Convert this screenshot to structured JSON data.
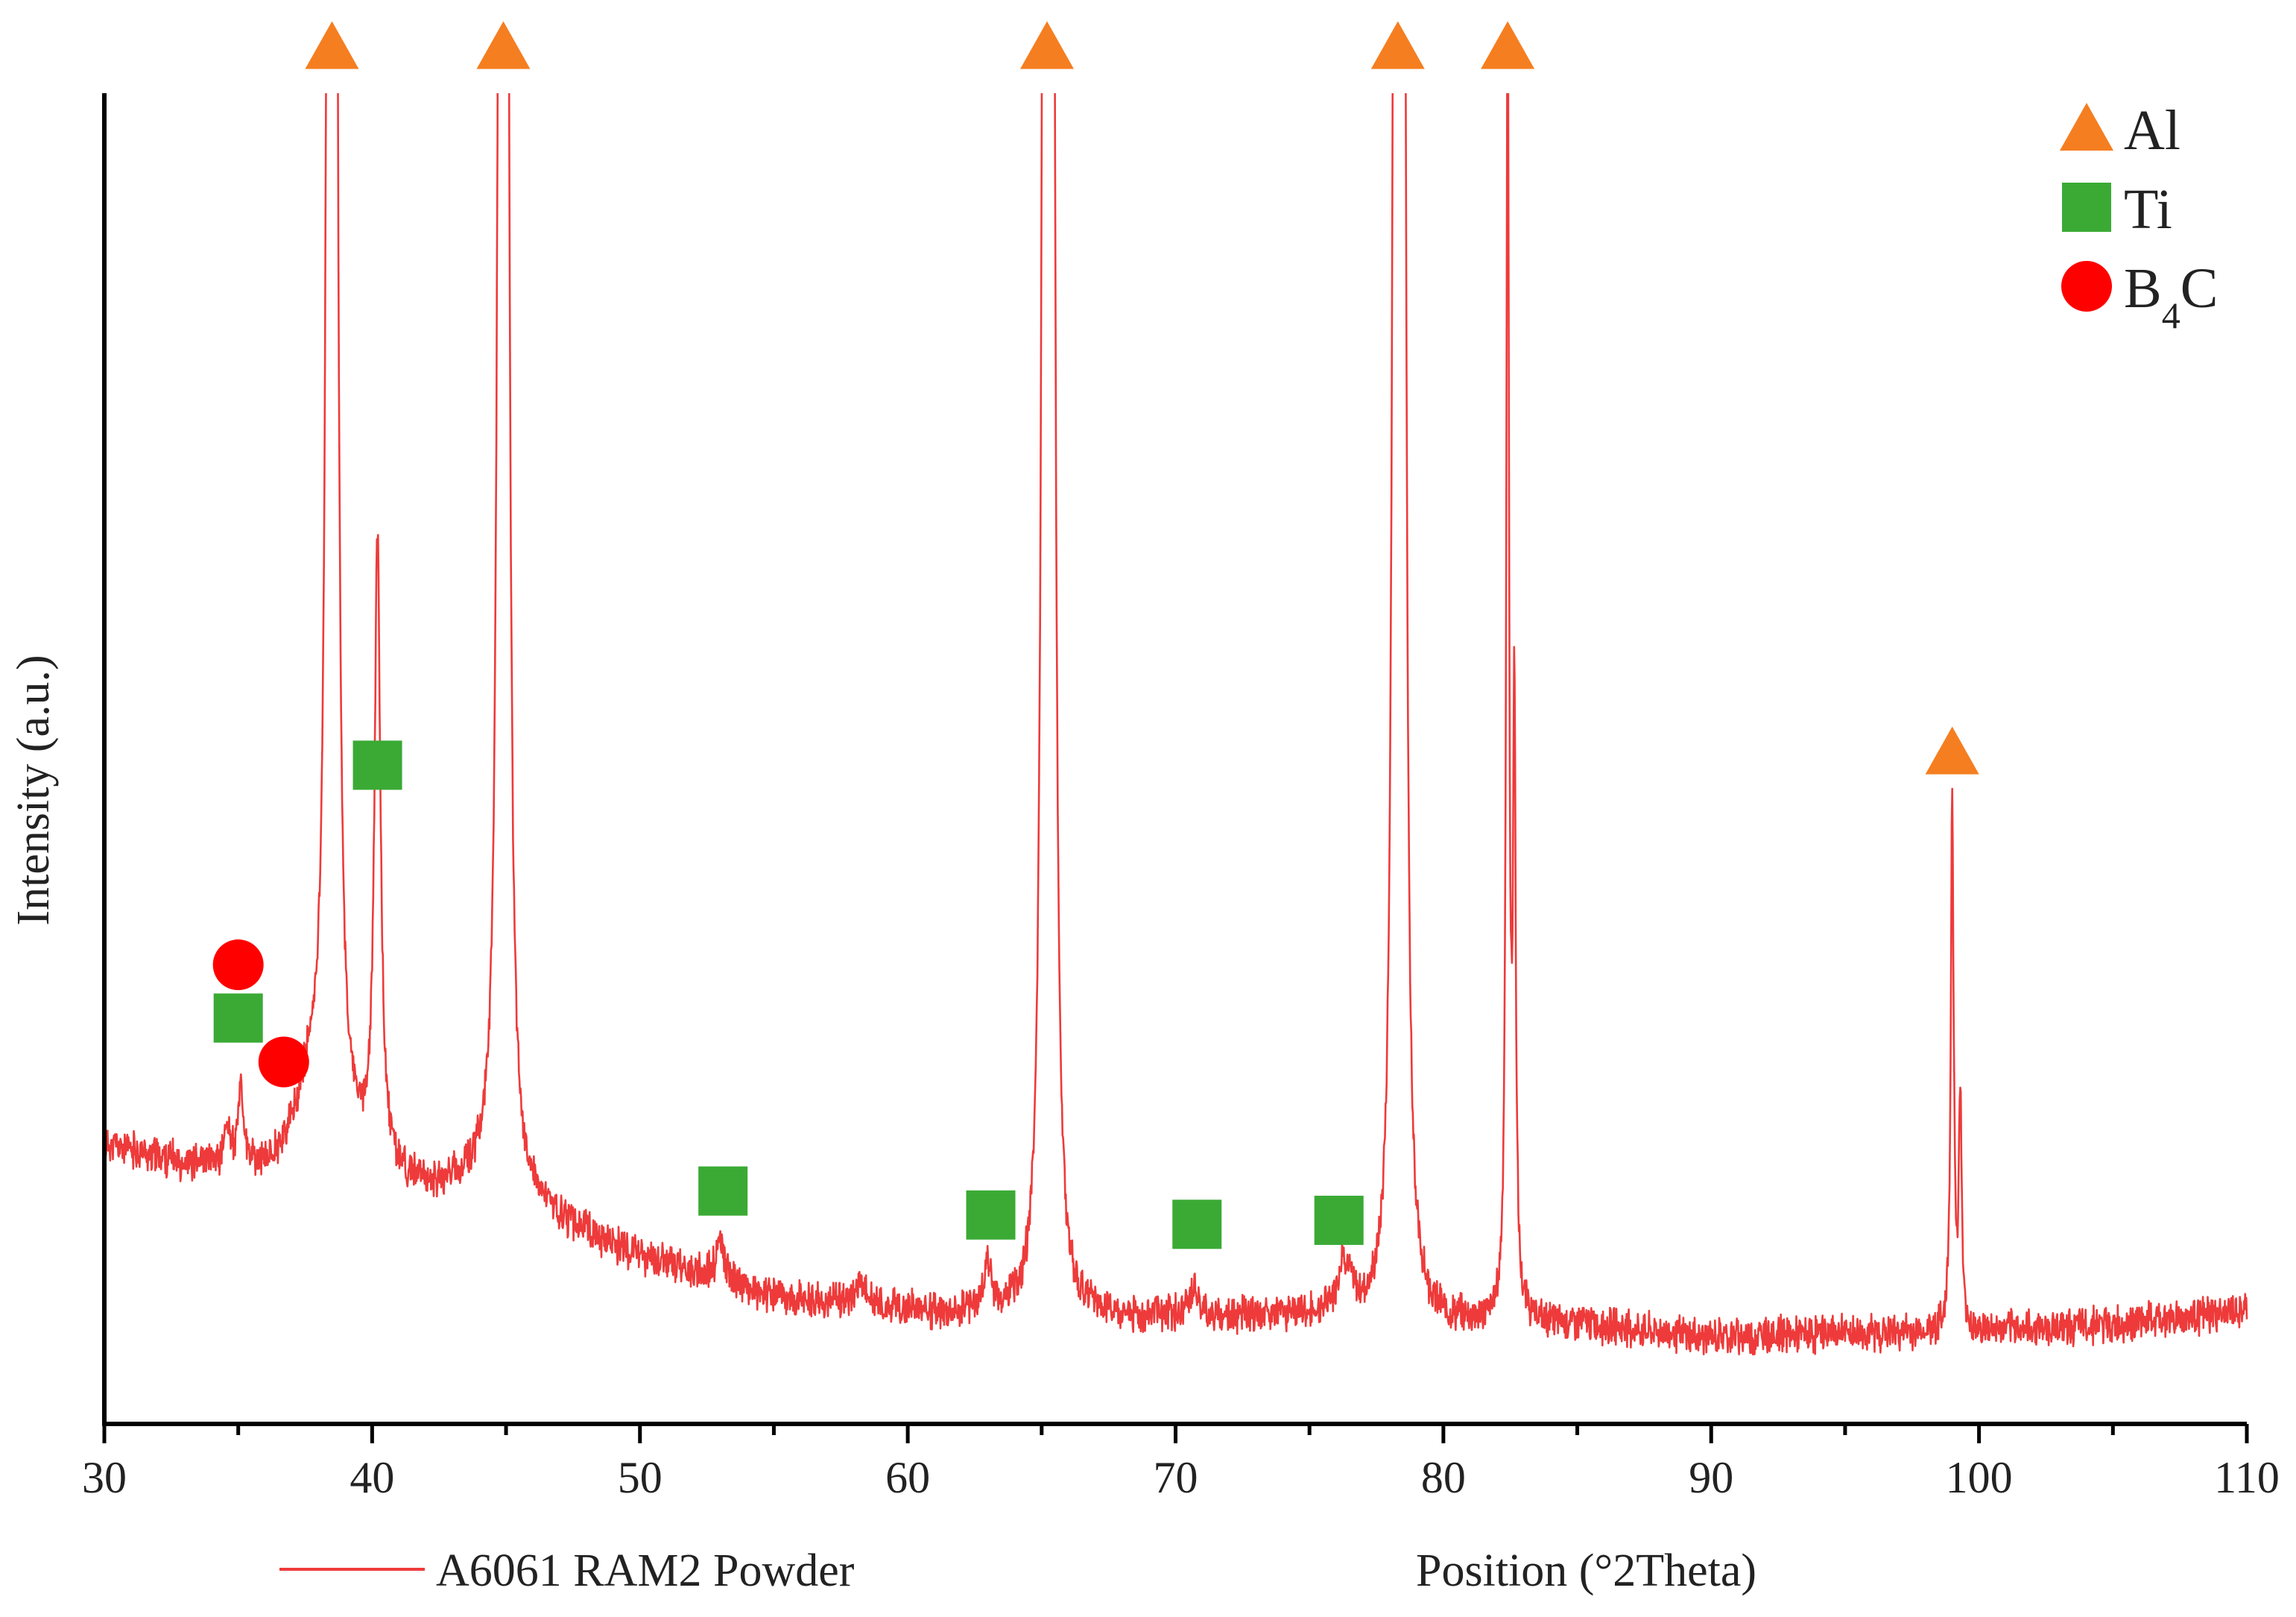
{
  "chart_data": {
    "type": "line",
    "title": "",
    "xlabel": "Position (°2Theta)",
    "ylabel": "Intensity (a.u.)",
    "xlim": [
      30,
      110
    ],
    "ylim": [
      0,
      1
    ],
    "x_ticks": [
      "30",
      "40",
      "50",
      "60",
      "70",
      "80",
      "90",
      "100",
      "110"
    ],
    "grid": false,
    "y_tick_labels": false,
    "series": [
      {
        "name": "A6061 RAM2 Powder",
        "color": "#ee3a3a",
        "baseline": [
          [
            30,
            0.21
          ],
          [
            33,
            0.195
          ],
          [
            36,
            0.19
          ],
          [
            38,
            0.22
          ],
          [
            40,
            0.19
          ],
          [
            42,
            0.175
          ],
          [
            44,
            0.18
          ],
          [
            46,
            0.16
          ],
          [
            50,
            0.125
          ],
          [
            55,
            0.095
          ],
          [
            60,
            0.085
          ],
          [
            65,
            0.08
          ],
          [
            70,
            0.08
          ],
          [
            75,
            0.08
          ],
          [
            80,
            0.075
          ],
          [
            85,
            0.075
          ],
          [
            90,
            0.065
          ],
          [
            95,
            0.068
          ],
          [
            100,
            0.07
          ],
          [
            105,
            0.075
          ],
          [
            110,
            0.085
          ]
        ],
        "peaks": [
          {
            "x": 34.6,
            "height": 0.03,
            "width": 0.15
          },
          {
            "x": 35.1,
            "height": 0.06,
            "width": 0.12
          },
          {
            "x": 37.6,
            "height": 0.03,
            "width": 0.5
          },
          {
            "x": 38.4,
            "height": 1.5,
            "width": 0.12
          },
          {
            "x": 38.6,
            "height": 1.5,
            "width": 0.12
          },
          {
            "x": 40.2,
            "height": 0.47,
            "width": 0.15
          },
          {
            "x": 44.8,
            "height": 1.5,
            "width": 0.12
          },
          {
            "x": 45.0,
            "height": 1.5,
            "width": 0.12
          },
          {
            "x": 53.0,
            "height": 0.03,
            "width": 0.2
          },
          {
            "x": 58.2,
            "height": 0.02,
            "width": 0.25
          },
          {
            "x": 63.0,
            "height": 0.035,
            "width": 0.2
          },
          {
            "x": 65.1,
            "height": 1.5,
            "width": 0.12
          },
          {
            "x": 65.4,
            "height": 1.5,
            "width": 0.12
          },
          {
            "x": 70.7,
            "height": 0.025,
            "width": 0.2
          },
          {
            "x": 76.3,
            "height": 0.04,
            "width": 0.35
          },
          {
            "x": 78.2,
            "height": 1.5,
            "width": 0.12
          },
          {
            "x": 78.5,
            "height": 1.5,
            "width": 0.12
          },
          {
            "x": 82.4,
            "height": 1.0,
            "width": 0.07
          },
          {
            "x": 82.65,
            "height": 0.45,
            "width": 0.07
          },
          {
            "x": 99.0,
            "height": 0.41,
            "width": 0.07
          },
          {
            "x": 99.3,
            "height": 0.17,
            "width": 0.07
          }
        ]
      }
    ],
    "markers": [
      {
        "phase": "Al",
        "shape": "triangle",
        "x": 38.5,
        "y": 1.035
      },
      {
        "phase": "Al",
        "shape": "triangle",
        "x": 44.9,
        "y": 1.035
      },
      {
        "phase": "Al",
        "shape": "triangle",
        "x": 65.2,
        "y": 1.035
      },
      {
        "phase": "Al",
        "shape": "triangle",
        "x": 78.3,
        "y": 1.035
      },
      {
        "phase": "Al",
        "shape": "triangle",
        "x": 82.4,
        "y": 1.035
      },
      {
        "phase": "Al",
        "shape": "triangle",
        "x": 99.0,
        "y": 0.505
      },
      {
        "phase": "Ti",
        "shape": "square",
        "x": 40.2,
        "y": 0.495
      },
      {
        "phase": "Ti",
        "shape": "square",
        "x": 35.0,
        "y": 0.305
      },
      {
        "phase": "Ti",
        "shape": "square",
        "x": 53.1,
        "y": 0.175
      },
      {
        "phase": "Ti",
        "shape": "square",
        "x": 63.1,
        "y": 0.157
      },
      {
        "phase": "Ti",
        "shape": "square",
        "x": 70.8,
        "y": 0.15
      },
      {
        "phase": "Ti",
        "shape": "square",
        "x": 76.1,
        "y": 0.153
      },
      {
        "phase": "B4C",
        "shape": "circle",
        "x": 35.0,
        "y": 0.345
      },
      {
        "phase": "B4C",
        "shape": "circle",
        "x": 36.7,
        "y": 0.272
      }
    ],
    "legend": {
      "placement": "top-right",
      "entries": [
        {
          "label": "Al",
          "shape": "triangle",
          "color": "#f57e20"
        },
        {
          "label": "Ti",
          "shape": "square",
          "color": "#3aaa35"
        },
        {
          "label": "B",
          "subscript": "4",
          "suffix": "C",
          "shape": "circle",
          "color": "#ff0000"
        }
      ]
    },
    "series_legend": {
      "placement": "bottom-left",
      "label": "A6061 RAM2 Powder"
    }
  }
}
